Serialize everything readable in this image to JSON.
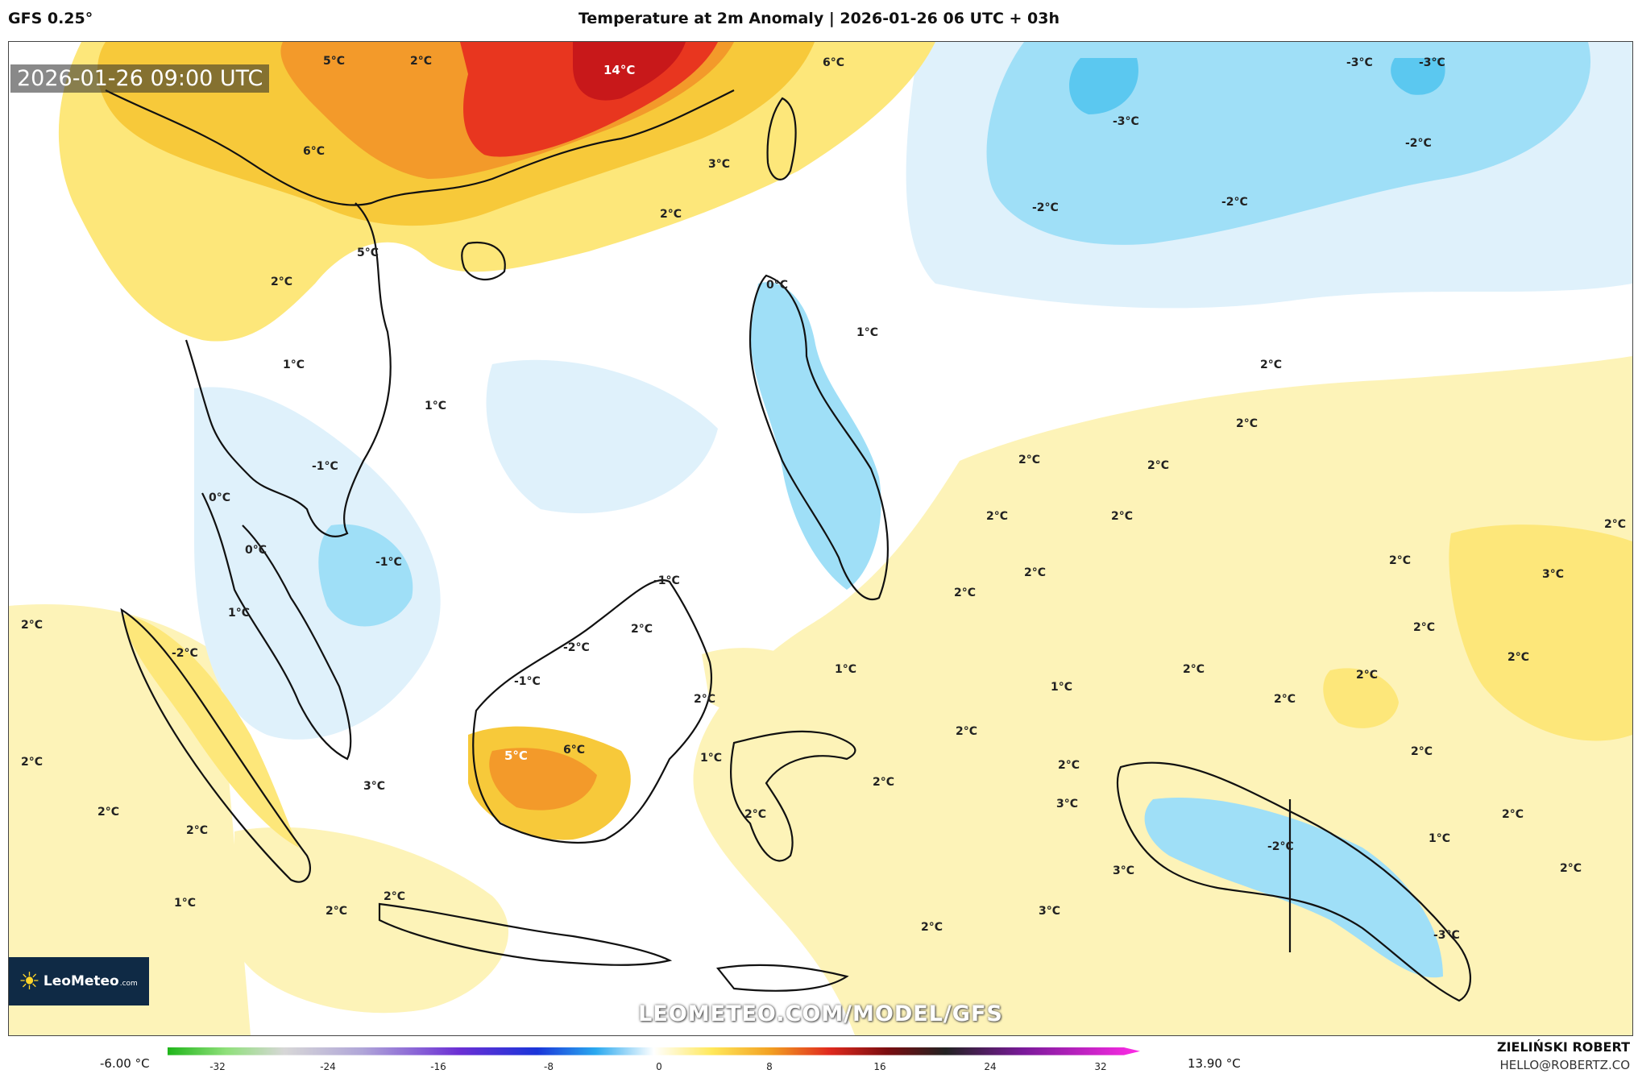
{
  "header": {
    "model": "GFS 0.25°",
    "title": "Temperature at 2m Anomaly | 2026-01-26 06 UTC + 03h"
  },
  "valid_time": "2026-01-26 09:00 UTC",
  "watermark": "LEOMETEO.COM/MODEL/GFS",
  "logo": {
    "brand": "LeoMeteo",
    "domain": ".com"
  },
  "author": {
    "name": "ZIELIŃSKI ROBERT",
    "email": "HELLO@ROBERTZ.CO"
  },
  "colorbar": {
    "min_label": "-6.00 °C",
    "max_label": "13.90 °C",
    "ticks": [
      "-32",
      "-24",
      "-16",
      "-8",
      "0",
      "8",
      "16",
      "24",
      "32"
    ]
  },
  "colors": {
    "ocean_near_zero": "#ffffff",
    "warm_1": "#fdf3b8",
    "warm_2": "#fde77a",
    "warm_3": "#f7c93a",
    "warm_4": "#f39a2a",
    "hot": "#e8361f",
    "cool_1": "#dff1fb",
    "cool_2": "#9fdff7",
    "cool_3": "#5bc8f0"
  },
  "map_labels": [
    {
      "text": "5°C"
    },
    {
      "text": "2°C"
    },
    {
      "text": "14°C"
    },
    {
      "text": "6°C"
    },
    {
      "text": "3°C"
    },
    {
      "text": "-3°C"
    },
    {
      "text": "-3°C"
    },
    {
      "text": "-3°C"
    },
    {
      "text": "-2°C"
    },
    {
      "text": "-2°C"
    },
    {
      "text": "-2°C"
    },
    {
      "text": "6°C"
    },
    {
      "text": "2°C"
    },
    {
      "text": "5°C"
    },
    {
      "text": "2°C"
    },
    {
      "text": "0°C"
    },
    {
      "text": "1°C"
    },
    {
      "text": "1°C"
    },
    {
      "text": "2°C"
    },
    {
      "text": "1°C"
    },
    {
      "text": "2°C"
    },
    {
      "text": "-1°C"
    },
    {
      "text": "2°C"
    },
    {
      "text": "2°C"
    },
    {
      "text": "2°C"
    },
    {
      "text": "0°C"
    },
    {
      "text": "2°C"
    },
    {
      "text": "-1°C"
    },
    {
      "text": "2°C"
    },
    {
      "text": "0°C"
    },
    {
      "text": "2°C"
    },
    {
      "text": "-1°C"
    },
    {
      "text": "2°C"
    },
    {
      "text": "2°C"
    },
    {
      "text": "3°C"
    },
    {
      "text": "1°C"
    },
    {
      "text": "2°C"
    },
    {
      "text": "2°C"
    },
    {
      "text": "-2°C"
    },
    {
      "text": "-2°C"
    },
    {
      "text": "2°C"
    },
    {
      "text": "1°C"
    },
    {
      "text": "2°C"
    },
    {
      "text": "2°C"
    },
    {
      "text": "1°C"
    },
    {
      "text": "2°C"
    },
    {
      "text": "-1°C"
    },
    {
      "text": "2°C"
    },
    {
      "text": "2°C"
    },
    {
      "text": "2°C"
    },
    {
      "text": "2°C"
    },
    {
      "text": "5°C"
    },
    {
      "text": "6°C"
    },
    {
      "text": "1°C"
    },
    {
      "text": "2°C"
    },
    {
      "text": "3°C"
    },
    {
      "text": "2°C"
    },
    {
      "text": "2°C"
    },
    {
      "text": "2°C"
    },
    {
      "text": "2°C"
    },
    {
      "text": "3°C"
    },
    {
      "text": "2°C"
    },
    {
      "text": "-2°C"
    },
    {
      "text": "1°C"
    },
    {
      "text": "2°C"
    },
    {
      "text": "2°C"
    },
    {
      "text": "1°C"
    },
    {
      "text": "2°C"
    },
    {
      "text": "2°C"
    },
    {
      "text": "3°C"
    },
    {
      "text": "3°C"
    },
    {
      "text": "-3°C"
    },
    {
      "text": "2°C"
    }
  ]
}
